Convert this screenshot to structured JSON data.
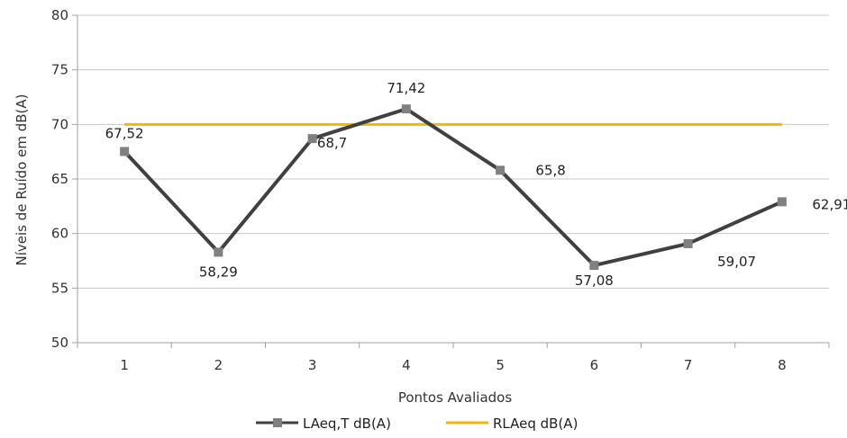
{
  "chart_data": {
    "type": "line",
    "categories": [
      "1",
      "2",
      "3",
      "4",
      "5",
      "6",
      "7",
      "8"
    ],
    "series": [
      {
        "name": "LAeq,T dB(A)",
        "values": [
          67.52,
          58.29,
          68.7,
          71.42,
          65.8,
          57.08,
          59.07,
          62.91
        ],
        "labels": [
          "67,52",
          "58,29",
          "68,7",
          "71,42",
          "65,8",
          "57,08",
          "59,07",
          "62,91"
        ],
        "color": "#404040",
        "marker_color": "#808080"
      },
      {
        "name": "RLAeq dB(A)",
        "values": [
          70,
          70,
          70,
          70,
          70,
          70,
          70,
          70
        ],
        "color": "#f2b705"
      }
    ],
    "xlabel": "Pontos Avaliados",
    "ylabel": "Níveis de Ruído em dB(A)",
    "ylim": [
      50,
      80
    ],
    "yticks": [
      50,
      55,
      60,
      65,
      70,
      75,
      80
    ],
    "grid": true,
    "legend": "bottom"
  }
}
